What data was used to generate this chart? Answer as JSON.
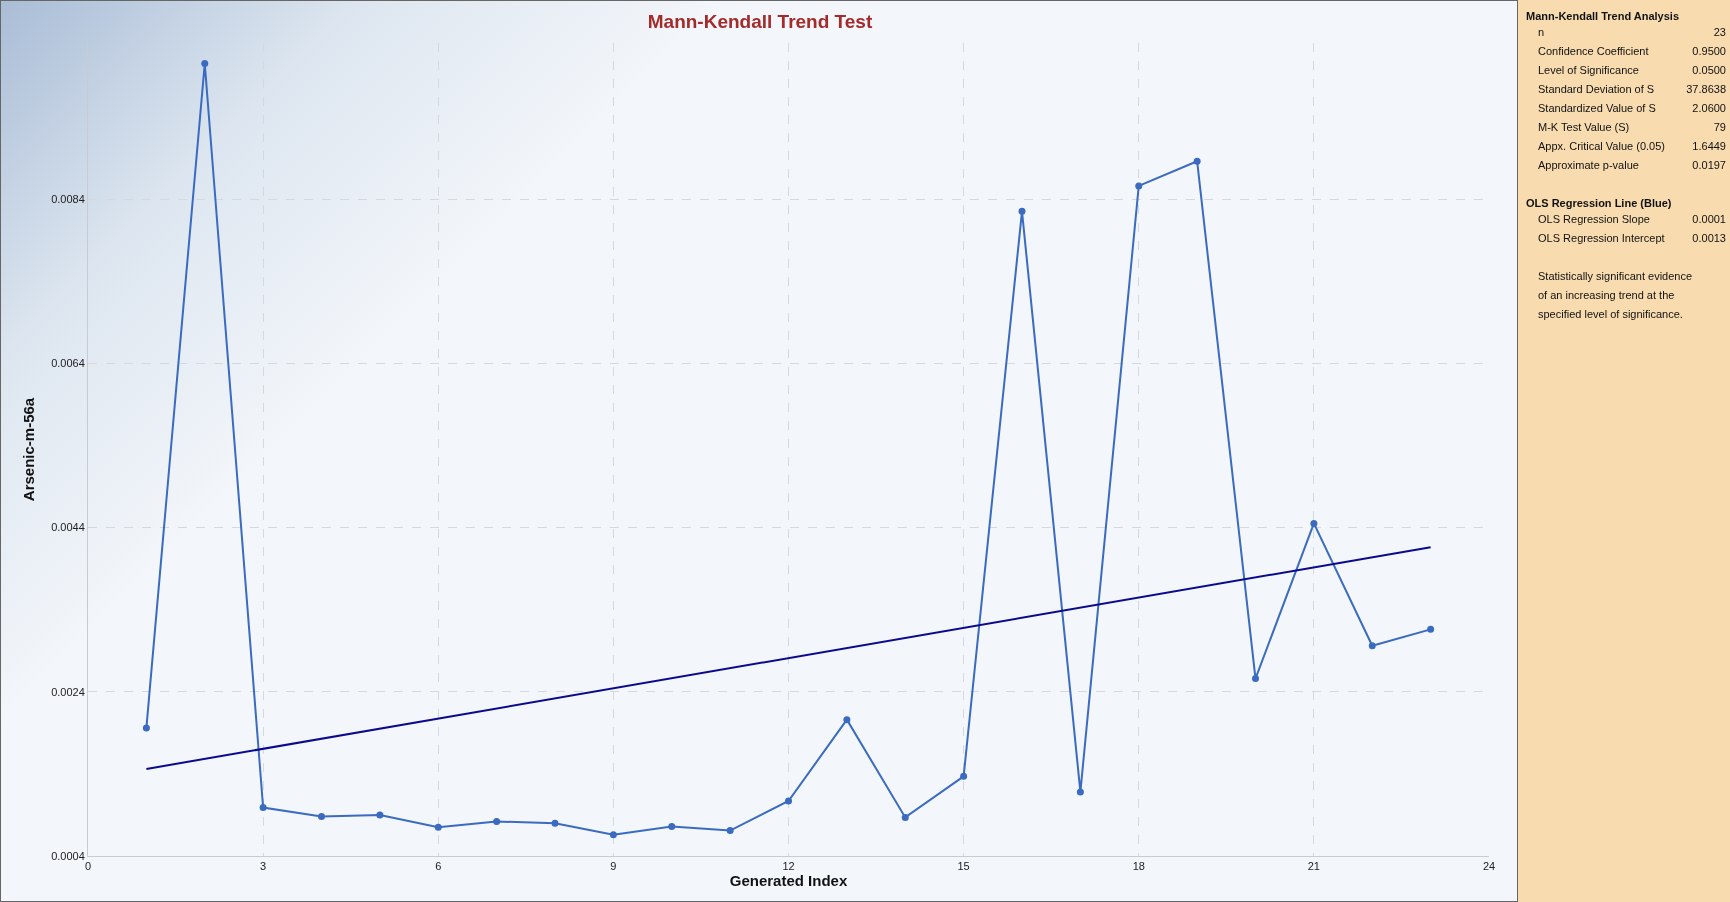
{
  "chart_data": {
    "type": "line",
    "title": "Mann-Kendall Trend Test",
    "xlabel": "Generated Index",
    "ylabel": "Arsenic-m-56a",
    "x": [
      1,
      2,
      3,
      4,
      5,
      6,
      7,
      8,
      9,
      10,
      11,
      12,
      13,
      14,
      15,
      16,
      17,
      18,
      19,
      20,
      21,
      22,
      23
    ],
    "series": [
      {
        "color": "#3a6bc0",
        "marker": "circle",
        "values": [
          0.00196,
          0.01005,
          0.00099,
          0.00088,
          0.0009,
          0.00075,
          0.00082,
          0.0008,
          0.00066,
          0.00076,
          0.00071,
          0.00107,
          0.00206,
          0.00087,
          0.00137,
          0.00825,
          0.00118,
          0.00856,
          0.00886,
          0.00256,
          0.00445,
          0.00296,
          0.00316
        ]
      },
      {
        "type": "line",
        "color": "#0a0a8c",
        "marker": "none",
        "x": [
          1,
          23
        ],
        "values": [
          0.00146,
          0.00416
        ]
      }
    ],
    "xlim": [
      0,
      24
    ],
    "xticks": [
      0,
      3,
      6,
      9,
      12,
      15,
      18,
      21,
      24
    ],
    "ylim": [
      0.0004,
      0.0103
    ],
    "yticks": [
      0.0004,
      0.0024,
      0.0044,
      0.0064,
      0.0084
    ],
    "grid": true,
    "line_style": "solid",
    "annotations": [
      "Mann-Kendall Trend Analysis",
      "n",
      "23",
      "Confidence Coefficient",
      "0.9500",
      "Level of Significance",
      "0.0500",
      "Standard Deviation of S",
      "37.8638",
      "Standardized Value of S",
      "2.0600",
      "M-K Test Value (S)",
      "79",
      "Appx. Critical Value (0.05)",
      "1.6449",
      "Approximate p-value",
      "0.0197",
      "OLS Regression Line (Blue)",
      "OLS Regression Slope",
      "0.0001",
      "OLS Regression Intercept",
      "0.0013",
      "Statistically significant evidence",
      "of an increasing trend at the",
      "specified level of significance."
    ]
  }
}
